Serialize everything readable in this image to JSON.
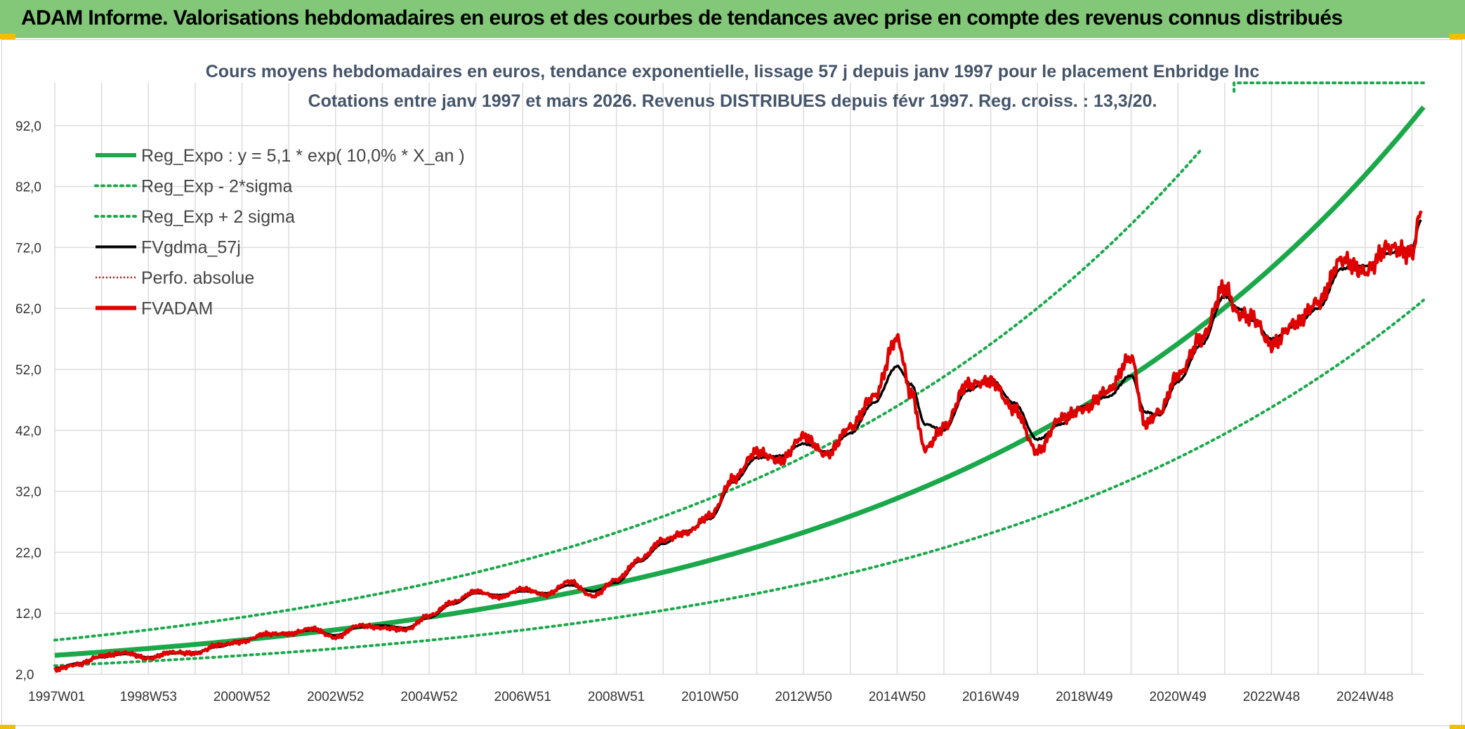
{
  "header": {
    "title": "ADAM Informe. Valorisations hebdomadaires en euros et des courbes de tendances avec prise en compte des revenus connus distribués"
  },
  "colors": {
    "trend": "#1aa84a",
    "band": "#1aa84a",
    "fvgdma": "#000000",
    "perfo": "#d40000",
    "fvadam": "#e00000",
    "header_bg": "#82c878"
  },
  "chart_data": {
    "type": "line",
    "title_line1": "Cours moyens hebdomadaires en euros, tendance exponentielle, lissage 57 j depuis janv 1997 pour le placement Enbridge Inc",
    "title_line2": "Cotations entre janv 1997 et mars 2026. Revenus DISTRIBUES depuis févr 1997. Reg. croiss. : 13,3/20.",
    "xlabel": "",
    "ylabel": "",
    "xlim": [
      1997.0,
      2026.25
    ],
    "ylim": [
      2.0,
      99.0
    ],
    "y_ticks": [
      "2,0",
      "12,0",
      "22,0",
      "32,0",
      "42,0",
      "52,0",
      "62,0",
      "72,0",
      "82,0",
      "92,0"
    ],
    "y_tick_values": [
      2,
      12,
      22,
      32,
      42,
      52,
      62,
      72,
      82,
      92
    ],
    "x_ticks": [
      "1997W01",
      "1998W53",
      "2000W52",
      "2002W52",
      "2004W52",
      "2006W51",
      "2008W51",
      "2010W50",
      "2012W50",
      "2014W50",
      "2016W49",
      "2018W49",
      "2020W49",
      "2022W48",
      "2024W48"
    ],
    "x_tick_values": [
      1997.0,
      1999.0,
      2001.0,
      2003.0,
      2005.0,
      2007.0,
      2009.0,
      2011.0,
      2013.0,
      2015.0,
      2017.0,
      2019.0,
      2021.0,
      2023.0,
      2025.0
    ],
    "legend": [
      {
        "label": "Reg_Expo : y = 5,1 * exp( 10,0% *  X_an )",
        "style": "solid-thick",
        "color": "#1aa84a"
      },
      {
        "label": "Reg_Exp - 2*sigma",
        "style": "dotted",
        "color": "#1aa84a"
      },
      {
        "label": "Reg_Exp + 2 sigma",
        "style": "dotted",
        "color": "#1aa84a"
      },
      {
        "label": "FVgdma_57j",
        "style": "solid",
        "color": "#000000"
      },
      {
        "label": "Perfo. absolue",
        "style": "dotted-thin",
        "color": "#d40000"
      },
      {
        "label": "FVADAM",
        "style": "solid-thick",
        "color": "#e00000"
      }
    ],
    "series": [
      {
        "name": "Reg_Expo",
        "formula": "5.1*exp(0.10*t)",
        "x": [
          1997.0,
          2000.0,
          2003.0,
          2006.0,
          2009.0,
          2012.0,
          2015.0,
          2018.0,
          2021.0,
          2024.0,
          2026.25
        ],
        "values": [
          5.1,
          6.9,
          9.2,
          12.5,
          16.8,
          22.7,
          30.6,
          41.3,
          55.8,
          75.3,
          96.5
        ]
      },
      {
        "name": "Reg_Exp - 2*sigma",
        "x": [
          1997.0,
          2000.0,
          2003.0,
          2006.0,
          2009.0,
          2012.0,
          2015.0,
          2018.0,
          2021.0,
          2024.0,
          2026.25
        ],
        "values": [
          3.4,
          4.6,
          6.2,
          8.4,
          11.3,
          15.2,
          20.5,
          27.7,
          37.4,
          50.4,
          63.0
        ]
      },
      {
        "name": "Reg_Exp + 2 sigma",
        "x": [
          1997.0,
          2000.0,
          2003.0,
          2006.0,
          2009.0,
          2012.0,
          2015.0,
          2018.0,
          2021.0,
          2024.0,
          2026.25
        ],
        "values": [
          7.6,
          10.3,
          13.9,
          18.7,
          25.3,
          34.1,
          46.0,
          62.1,
          83.8,
          99.0,
          99.0
        ]
      },
      {
        "name": "FVgdma_57j",
        "x": [
          1997.0,
          1997.5,
          1998.0,
          1998.5,
          1999.0,
          1999.5,
          2000.0,
          2000.5,
          2001.0,
          2001.5,
          2002.0,
          2002.5,
          2003.0,
          2003.5,
          2004.0,
          2004.5,
          2005.0,
          2005.5,
          2006.0,
          2006.5,
          2007.0,
          2007.5,
          2008.0,
          2008.5,
          2009.0,
          2009.5,
          2010.0,
          2010.5,
          2011.0,
          2011.5,
          2012.0,
          2012.5,
          2013.0,
          2013.5,
          2014.0,
          2014.5,
          2015.0,
          2015.3,
          2015.6,
          2016.0,
          2016.5,
          2017.0,
          2017.5,
          2018.0,
          2018.5,
          2019.0,
          2019.5,
          2020.0,
          2020.3,
          2020.6,
          2021.0,
          2021.5,
          2022.0,
          2022.3,
          2022.6,
          2023.0,
          2023.5,
          2024.0,
          2024.5,
          2025.0,
          2025.5,
          2026.0,
          2026.2
        ],
        "values": [
          3.0,
          3.8,
          4.8,
          5.3,
          4.8,
          5.4,
          5.6,
          6.5,
          7.5,
          8.4,
          8.8,
          9.2,
          8.4,
          9.7,
          10.0,
          9.6,
          11.3,
          13.5,
          15.3,
          15.0,
          15.6,
          15.3,
          16.6,
          15.6,
          17.0,
          20.5,
          23.4,
          25.5,
          27.5,
          33.5,
          37.5,
          37.8,
          39.8,
          38.5,
          41.5,
          46.5,
          52.5,
          49.5,
          43.0,
          42.0,
          48.5,
          50.5,
          46.5,
          40.5,
          43.0,
          46.0,
          47.5,
          51.0,
          45.0,
          44.5,
          50.0,
          56.0,
          64.0,
          62.0,
          60.0,
          57.0,
          59.0,
          62.0,
          68.5,
          69.0,
          71.0,
          72.0,
          76.5
        ]
      },
      {
        "name": "FVADAM",
        "x": [
          1997.0,
          1997.5,
          1998.0,
          1998.5,
          1999.0,
          1999.5,
          2000.0,
          2000.5,
          2001.0,
          2001.5,
          2002.0,
          2002.5,
          2003.0,
          2003.5,
          2004.0,
          2004.5,
          2005.0,
          2005.5,
          2006.0,
          2006.5,
          2007.0,
          2007.5,
          2008.0,
          2008.5,
          2009.0,
          2009.5,
          2010.0,
          2010.5,
          2011.0,
          2011.5,
          2012.0,
          2012.5,
          2013.0,
          2013.5,
          2014.0,
          2014.5,
          2015.0,
          2015.3,
          2015.6,
          2016.0,
          2016.5,
          2017.0,
          2017.5,
          2018.0,
          2018.5,
          2019.0,
          2019.5,
          2020.0,
          2020.3,
          2020.6,
          2021.0,
          2021.5,
          2022.0,
          2022.3,
          2022.6,
          2023.0,
          2023.5,
          2024.0,
          2024.5,
          2025.0,
          2025.5,
          2026.0,
          2026.2
        ],
        "values": [
          2.8,
          3.6,
          5.0,
          5.5,
          4.6,
          5.6,
          5.4,
          6.8,
          7.3,
          8.6,
          8.6,
          9.5,
          8.0,
          10.0,
          9.6,
          9.3,
          11.6,
          13.8,
          15.6,
          14.6,
          16.0,
          15.0,
          17.2,
          14.8,
          17.5,
          20.8,
          24.0,
          25.2,
          28.0,
          34.0,
          38.5,
          37.0,
          41.0,
          38.0,
          42.5,
          47.5,
          57.0,
          48.0,
          39.0,
          42.5,
          49.5,
          50.0,
          45.5,
          38.5,
          44.0,
          45.5,
          48.5,
          54.0,
          43.0,
          45.0,
          51.0,
          57.0,
          65.5,
          61.0,
          60.5,
          56.0,
          59.5,
          63.0,
          70.0,
          68.0,
          72.0,
          71.0,
          78.0
        ]
      }
    ]
  }
}
